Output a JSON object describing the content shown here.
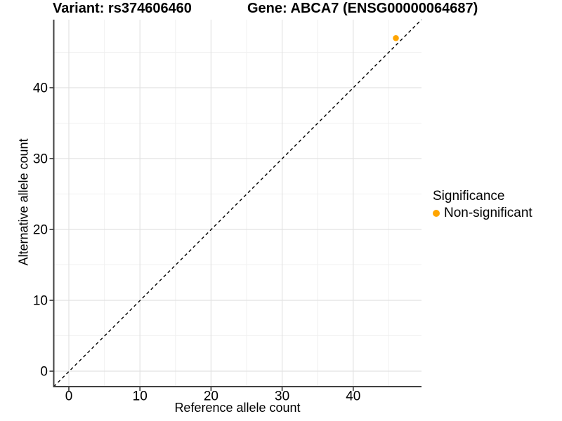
{
  "chart_data": {
    "type": "scatter",
    "titles": [
      "Variant: rs374606460",
      "Gene: ABCA7 (ENSG00000064687)"
    ],
    "xlabel": "Reference allele count",
    "ylabel": "Alternative allele count",
    "xlim": [
      -2.2,
      49.6
    ],
    "ylim": [
      -2.2,
      49.6
    ],
    "x_ticks": [
      0,
      10,
      20,
      30,
      40
    ],
    "y_ticks": [
      0,
      10,
      20,
      30,
      40
    ],
    "x_minor_ticks": [
      5,
      15,
      25,
      35,
      45
    ],
    "y_minor_ticks": [
      5,
      15,
      25,
      35,
      45
    ],
    "grid": "major and minor gridlines, white background",
    "reference_line": {
      "kind": "identity y = x",
      "style": "dashed",
      "color": "#000000"
    },
    "series": [
      {
        "name": "Non-significant",
        "color": "#FFA500",
        "points": [
          {
            "reference_allele_count": 46,
            "alternative_allele_count": 47
          }
        ]
      }
    ],
    "legend": {
      "title": "Significance",
      "position": "right",
      "entries": [
        {
          "label": "Non-significant",
          "color": "#FFA500",
          "marker": "dot"
        }
      ]
    }
  },
  "palette": {
    "background": "#FFFFFF",
    "text": "#000000",
    "axis_line": "#404040",
    "tick_mark": "#333333",
    "grid_major": "#E2E2E2",
    "grid_minor": "#F0F0F0",
    "point_nonsignificant": "#FFA500"
  }
}
